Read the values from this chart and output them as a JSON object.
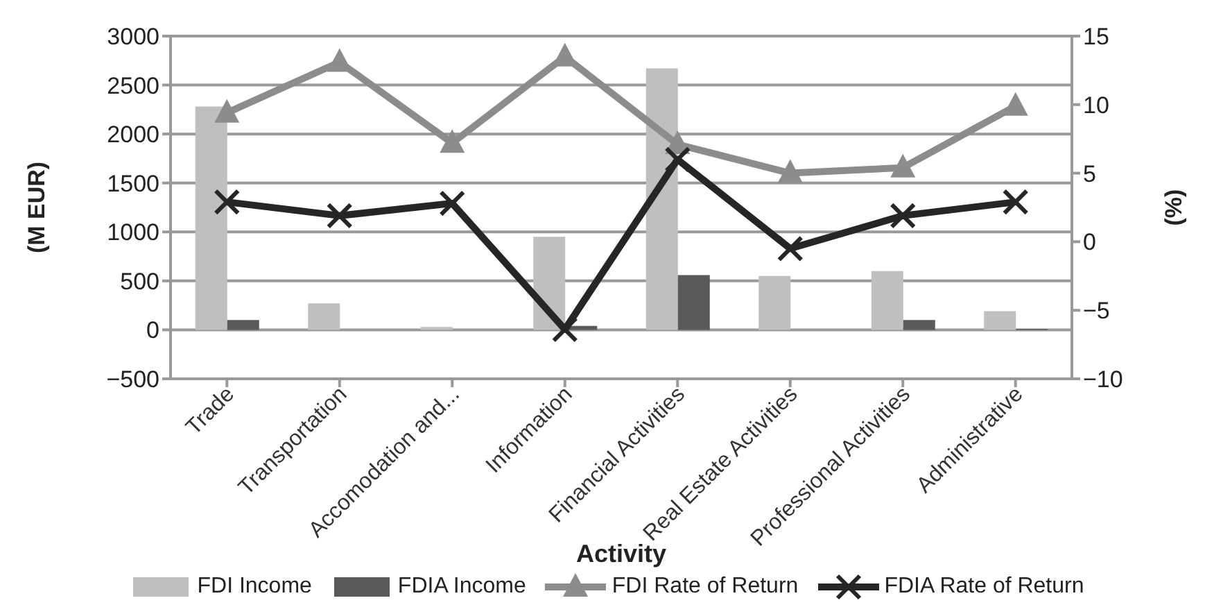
{
  "chart_data": {
    "type": "bar",
    "xlabel": "Activity",
    "ylabel": "(M EUR)",
    "y2label": "(%)",
    "categories": [
      "Trade",
      "Transportation",
      "Accomodation and...",
      "Information",
      "Financial Activities",
      "Real Estate Activities",
      "Professional Activities",
      "Administrative"
    ],
    "series": [
      {
        "name": "FDI Income",
        "color": "#bfbfbf",
        "values": [
          2280,
          270,
          30,
          950,
          2670,
          550,
          600,
          190
        ]
      },
      {
        "name": "FDIA Income",
        "color": "#595959",
        "values": [
          100,
          0,
          0,
          40,
          560,
          0,
          100,
          10
        ]
      },
      {
        "name": "FDI Rate of Return",
        "type": "line",
        "axis": "y2",
        "color": "#8c8c8c",
        "marker": "triangle",
        "values": [
          9.4,
          13.1,
          7.2,
          13.5,
          7.1,
          5.0,
          5.4,
          9.9
        ]
      },
      {
        "name": "FDIA Rate of Return",
        "type": "line",
        "axis": "y2",
        "color": "#262626",
        "marker": "cross",
        "values": [
          2.9,
          1.9,
          2.8,
          -6.4,
          6.0,
          -0.5,
          1.9,
          2.9
        ]
      }
    ],
    "ylim": [
      -500,
      3000
    ],
    "yticks": [
      -500,
      0,
      500,
      1000,
      1500,
      2000,
      2500,
      3000
    ],
    "y2lim": [
      -10,
      15
    ],
    "y2ticks": [
      -10,
      -5,
      0,
      5,
      10,
      15
    ],
    "grid": "y",
    "legend": "bottom"
  }
}
